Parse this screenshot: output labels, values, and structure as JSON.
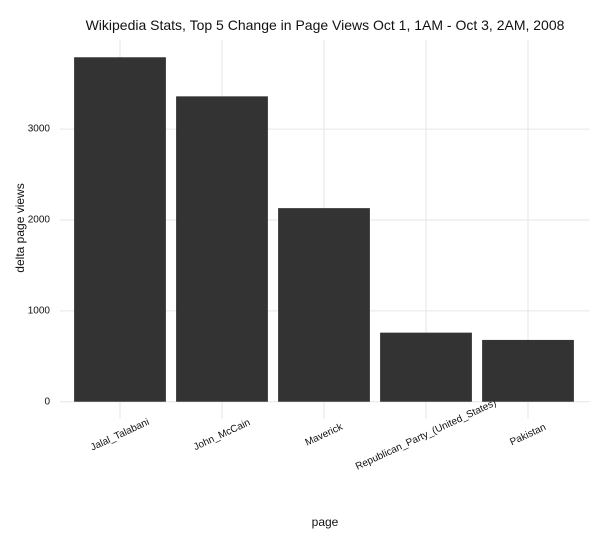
{
  "chart_data": {
    "type": "bar",
    "title": "Wikipedia Stats, Top 5 Change in Page Views  Oct 1, 1AM - Oct 3, 2AM, 2008",
    "x_label": "page",
    "y_label": "delta page views",
    "categories": [
      "Jalal_Talabani",
      "John_McCain",
      "Maverick",
      "Republican_Party_(United_States)",
      "Pakistan"
    ],
    "values": [
      3790,
      3360,
      2130,
      760,
      680
    ],
    "color": "#333333",
    "ylim": [
      -190,
      3980
    ],
    "yticks": [
      0,
      1000,
      2000,
      3000
    ],
    "grid": true
  }
}
